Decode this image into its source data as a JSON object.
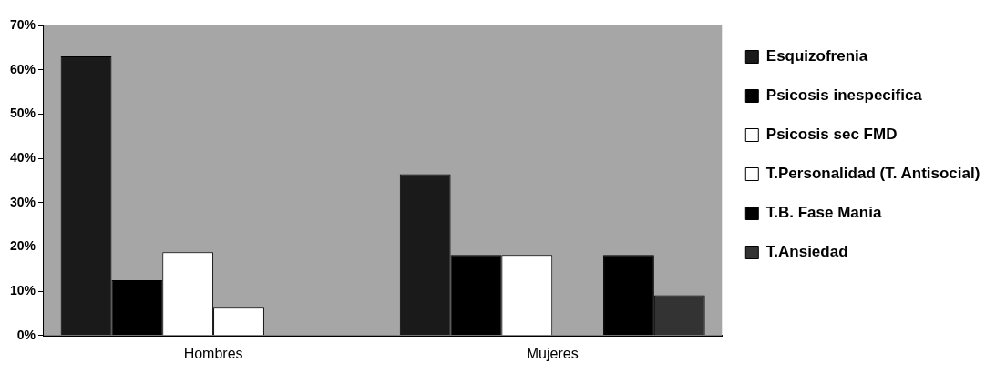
{
  "chart_data": {
    "type": "bar",
    "categories": [
      "Hombres",
      "Mujeres"
    ],
    "series": [
      {
        "name": "Esquizofrenia",
        "color": "#1a1a1a",
        "values": [
          63,
          36.4
        ]
      },
      {
        "name": "Psicosis inespecifica",
        "color": "#000000",
        "values": [
          12.5,
          18.2
        ]
      },
      {
        "name": "Psicosis sec FMD",
        "color": "#ffffff",
        "values": [
          18.8,
          18.2
        ]
      },
      {
        "name": "T.Personalidad (T. Antisocial)",
        "color": "#ffffff",
        "values": [
          6.3,
          null
        ]
      },
      {
        "name": "T.B. Fase Mania",
        "color": "#000000",
        "values": [
          null,
          18.2
        ]
      },
      {
        "name": "T.Ansiedad",
        "color": "#333333",
        "values": [
          null,
          9.1
        ]
      }
    ],
    "ylim": [
      0,
      70
    ],
    "yticks": [
      {
        "value": 0,
        "label": "0%"
      },
      {
        "value": 10,
        "label": "10%"
      },
      {
        "value": 20,
        "label": "20%"
      },
      {
        "value": 30,
        "label": "30%"
      },
      {
        "value": 40,
        "label": "40%"
      },
      {
        "value": 50,
        "label": "50%"
      },
      {
        "value": 60,
        "label": "60%"
      },
      {
        "value": 70,
        "label": "70%"
      }
    ],
    "grid": false,
    "legend": "right"
  }
}
